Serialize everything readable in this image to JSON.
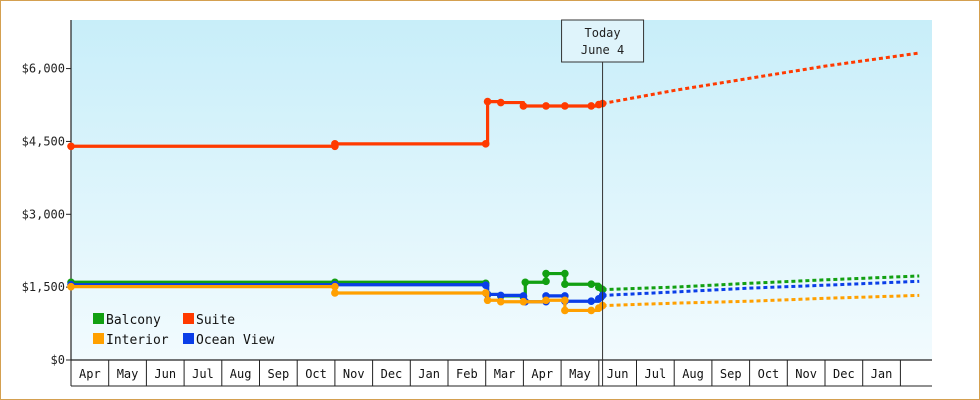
{
  "chart_data": {
    "type": "line",
    "y_axis": {
      "ticks": [
        {
          "value": 0,
          "label": "$0"
        },
        {
          "value": 1500,
          "label": "$1,500"
        },
        {
          "value": 3000,
          "label": "$3,000"
        },
        {
          "value": 4500,
          "label": "$4,500"
        },
        {
          "value": 6000,
          "label": "$6,000"
        }
      ],
      "ylim": [
        0,
        7000
      ]
    },
    "x_axis": {
      "months": [
        "Apr",
        "May",
        "Jun",
        "Jul",
        "Aug",
        "Sep",
        "Oct",
        "Nov",
        "Dec",
        "Jan",
        "Feb",
        "Mar",
        "Apr",
        "May",
        "Jun",
        "Jul",
        "Aug",
        "Sep",
        "Oct",
        "Nov",
        "Dec",
        "Jan"
      ],
      "xlim": [
        0,
        22.5
      ]
    },
    "today": {
      "label_line1": "Today",
      "label_line2": "June 4",
      "x": 14.1
    },
    "legend": {
      "placement": "bottom-left"
    },
    "grid": false,
    "series": [
      {
        "name": "Suite",
        "color": "#ff3a00",
        "points": [
          [
            0,
            4400
          ],
          [
            7.0,
            4400
          ],
          [
            7.0,
            4450
          ],
          [
            11.0,
            4450
          ],
          [
            11.05,
            5320
          ],
          [
            11.4,
            5300
          ],
          [
            12.0,
            5230
          ],
          [
            12.6,
            5230
          ],
          [
            13.1,
            5230
          ],
          [
            13.8,
            5230
          ],
          [
            14.0,
            5260
          ],
          [
            14.1,
            5280
          ]
        ],
        "forecast": [
          [
            14.1,
            5280
          ],
          [
            16,
            5550
          ],
          [
            18,
            5800
          ],
          [
            20,
            6050
          ],
          [
            22.5,
            6320
          ]
        ]
      },
      {
        "name": "Balcony",
        "color": "#12a012",
        "points": [
          [
            0,
            1600
          ],
          [
            7.0,
            1600
          ],
          [
            11.0,
            1580
          ],
          [
            11.05,
            1350
          ],
          [
            11.4,
            1320
          ],
          [
            12.0,
            1300
          ],
          [
            12.05,
            1600
          ],
          [
            12.6,
            1620
          ],
          [
            12.6,
            1780
          ],
          [
            13.1,
            1780
          ],
          [
            13.1,
            1560
          ],
          [
            13.8,
            1560
          ],
          [
            14.0,
            1500
          ],
          [
            14.1,
            1450
          ]
        ],
        "forecast": [
          [
            14.1,
            1450
          ],
          [
            16,
            1500
          ],
          [
            18,
            1580
          ],
          [
            20,
            1650
          ],
          [
            22.5,
            1730
          ]
        ]
      },
      {
        "name": "Ocean View",
        "color": "#0a3ee8",
        "points": [
          [
            0,
            1550
          ],
          [
            7.0,
            1550
          ],
          [
            11.0,
            1540
          ],
          [
            11.05,
            1350
          ],
          [
            11.4,
            1330
          ],
          [
            12.0,
            1320
          ],
          [
            12.05,
            1200
          ],
          [
            12.6,
            1200
          ],
          [
            12.6,
            1320
          ],
          [
            13.1,
            1320
          ],
          [
            13.1,
            1210
          ],
          [
            13.8,
            1210
          ],
          [
            14.0,
            1260
          ],
          [
            14.1,
            1330
          ]
        ],
        "forecast": [
          [
            14.1,
            1330
          ],
          [
            16,
            1400
          ],
          [
            18,
            1480
          ],
          [
            20,
            1540
          ],
          [
            22.5,
            1620
          ]
        ]
      },
      {
        "name": "Interior",
        "color": "#ffa000",
        "points": [
          [
            0,
            1510
          ],
          [
            7.0,
            1510
          ],
          [
            7.0,
            1380
          ],
          [
            11.0,
            1380
          ],
          [
            11.05,
            1230
          ],
          [
            11.4,
            1200
          ],
          [
            12.0,
            1200
          ],
          [
            12.6,
            1230
          ],
          [
            13.1,
            1230
          ],
          [
            13.1,
            1020
          ],
          [
            13.8,
            1020
          ],
          [
            14.0,
            1070
          ],
          [
            14.1,
            1120
          ]
        ],
        "forecast": [
          [
            14.1,
            1120
          ],
          [
            16,
            1170
          ],
          [
            18,
            1210
          ],
          [
            20,
            1270
          ],
          [
            22.5,
            1330
          ]
        ]
      }
    ]
  },
  "legend_items": [
    {
      "name": "Balcony",
      "color": "#12a012"
    },
    {
      "name": "Suite",
      "color": "#ff3a00"
    },
    {
      "name": "Interior",
      "color": "#ffa000"
    },
    {
      "name": "Ocean View",
      "color": "#0a3ee8"
    }
  ]
}
